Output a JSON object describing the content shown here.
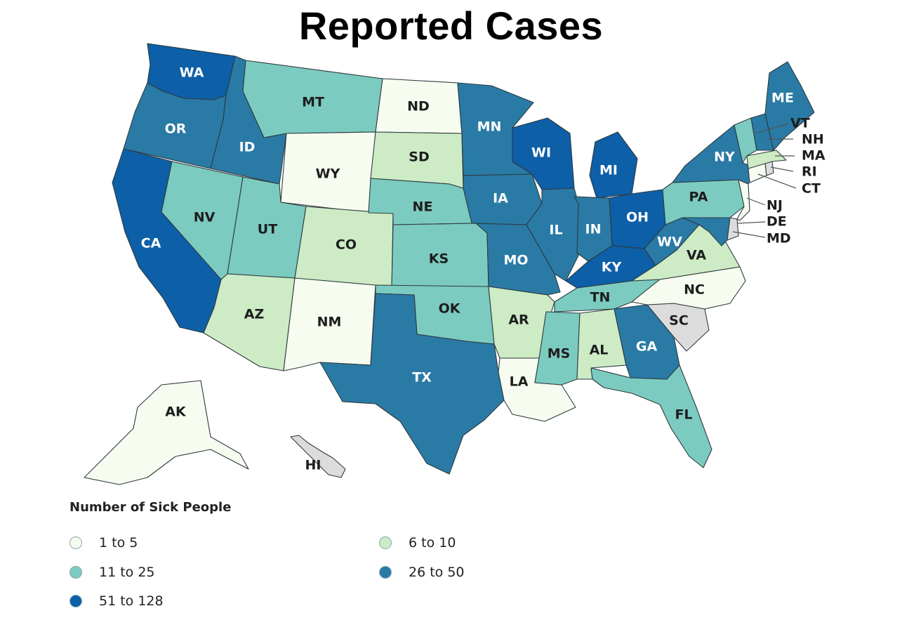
{
  "title": "Reported Cases",
  "legend": {
    "title": "Number of Sick People",
    "bins": [
      {
        "label": "1 to 5",
        "color": "#f7fcf0"
      },
      {
        "label": "6 to 10",
        "color": "#cdebc5"
      },
      {
        "label": "11 to 25",
        "color": "#7ccbc0"
      },
      {
        "label": "26 to 50",
        "color": "#2a7aa6"
      },
      {
        "label": "51 to 128",
        "color": "#0d5fa8"
      }
    ],
    "no_data_color": "#dcdcdc"
  },
  "states": {
    "WA": {
      "label": "WA",
      "bin": 4
    },
    "OR": {
      "label": "OR",
      "bin": 3
    },
    "CA": {
      "label": "CA",
      "bin": 4
    },
    "ID": {
      "label": "ID",
      "bin": 3
    },
    "NV": {
      "label": "NV",
      "bin": 2
    },
    "MT": {
      "label": "MT",
      "bin": 2
    },
    "WY": {
      "label": "WY",
      "bin": 0
    },
    "UT": {
      "label": "UT",
      "bin": 2
    },
    "AZ": {
      "label": "AZ",
      "bin": 1
    },
    "CO": {
      "label": "CO",
      "bin": 1
    },
    "NM": {
      "label": "NM",
      "bin": 0
    },
    "ND": {
      "label": "ND",
      "bin": 0
    },
    "SD": {
      "label": "SD",
      "bin": 1
    },
    "NE": {
      "label": "NE",
      "bin": 2
    },
    "KS": {
      "label": "KS",
      "bin": 2
    },
    "OK": {
      "label": "OK",
      "bin": 2
    },
    "TX": {
      "label": "TX",
      "bin": 3
    },
    "MN": {
      "label": "MN",
      "bin": 3
    },
    "IA": {
      "label": "IA",
      "bin": 3
    },
    "MO": {
      "label": "MO",
      "bin": 3
    },
    "AR": {
      "label": "AR",
      "bin": 1
    },
    "LA": {
      "label": "LA",
      "bin": 0
    },
    "WI": {
      "label": "WI",
      "bin": 4
    },
    "IL": {
      "label": "IL",
      "bin": 3
    },
    "MI": {
      "label": "MI",
      "bin": 4
    },
    "IN": {
      "label": "IN",
      "bin": 3
    },
    "OH": {
      "label": "OH",
      "bin": 4
    },
    "KY": {
      "label": "KY",
      "bin": 4
    },
    "TN": {
      "label": "TN",
      "bin": 2
    },
    "MS": {
      "label": "MS",
      "bin": 2
    },
    "AL": {
      "label": "AL",
      "bin": 1
    },
    "GA": {
      "label": "GA",
      "bin": 3
    },
    "FL": {
      "label": "FL",
      "bin": 2
    },
    "SC": {
      "label": "SC",
      "bin": -1
    },
    "NC": {
      "label": "NC",
      "bin": 0
    },
    "VA": {
      "label": "VA",
      "bin": 1
    },
    "WV": {
      "label": "WV",
      "bin": 3
    },
    "PA": {
      "label": "PA",
      "bin": 2
    },
    "NY": {
      "label": "NY",
      "bin": 3
    },
    "ME": {
      "label": "ME",
      "bin": 3
    },
    "VT": {
      "label": "VT",
      "bin": 2
    },
    "NH": {
      "label": "NH",
      "bin": 3
    },
    "MA": {
      "label": "MA",
      "bin": 1
    },
    "RI": {
      "label": "RI",
      "bin": -1
    },
    "CT": {
      "label": "CT",
      "bin": 0
    },
    "NJ": {
      "label": "NJ",
      "bin": 0
    },
    "DE": {
      "label": "DE",
      "bin": -1
    },
    "MD": {
      "label": "MD",
      "bin": 3
    },
    "AK": {
      "label": "AK",
      "bin": 0
    },
    "HI": {
      "label": "HI",
      "bin": -1
    }
  }
}
